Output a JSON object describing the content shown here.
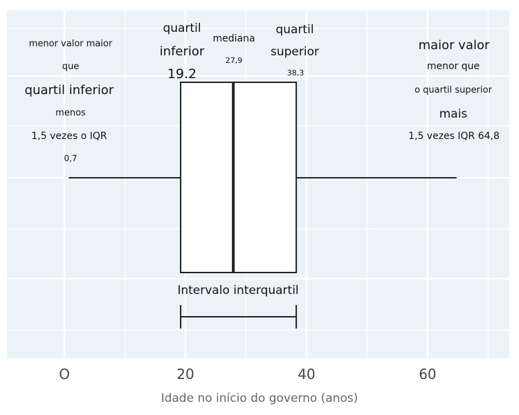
{
  "chart_data": {
    "type": "boxplot",
    "xlabel": "Idade no início do governo (anos)",
    "ylabel": "",
    "xlim": [
      -9.5,
      73.5
    ],
    "grid": true,
    "tick_values": [
      0,
      20,
      40,
      60
    ],
    "tick_labels": [
      "O",
      "20",
      "40",
      "60"
    ],
    "stats": {
      "min": 0.7,
      "q1": 19.2,
      "median": 27.9,
      "q3": 38.3,
      "max": 64.8
    },
    "iqr_label": "Intervalo interquartil",
    "annotations": {
      "left": {
        "line1": "menor valor maior",
        "line2": "que",
        "line3": "quartil inferior",
        "line4": "menos",
        "line5": "1,5 vezes o IQR",
        "value": "0,7"
      },
      "q1": {
        "line1": "quartil",
        "line2": "inferior",
        "value": "19.2"
      },
      "median": {
        "line1": "mediana",
        "value": "27,9"
      },
      "q3": {
        "line1": "quartil",
        "line2": "superior",
        "value": "38,3"
      },
      "right": {
        "line1": "maior valor",
        "line2": "menor que",
        "line3": "o quartil superior",
        "line4": "mais",
        "line5": "1,5 vezes IQR 64,8"
      }
    },
    "colors": {
      "panel": "#ebf3f6",
      "grid": "#ffffff",
      "box_fill": "#ffffff",
      "line": "#222222"
    }
  }
}
